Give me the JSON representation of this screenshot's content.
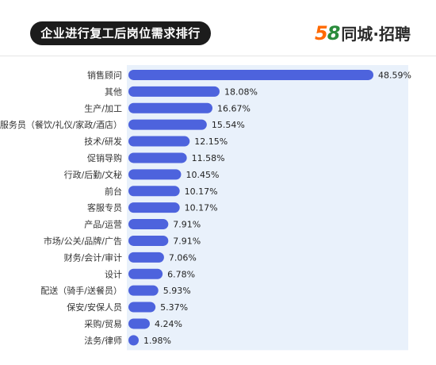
{
  "title": "企业进行复工后岗位需求排行",
  "logo": {
    "number": "58",
    "text": "同城·招聘"
  },
  "colors": {
    "bar": "#4d63dd",
    "panel": "#e9f1fb",
    "title_bg": "#1c1c1c"
  },
  "chart_data": {
    "type": "bar",
    "orientation": "horizontal",
    "categories": [
      "销售顾问",
      "其他",
      "生产/加工",
      "服务员（餐饮/礼仪/家政/酒店）",
      "技术/研发",
      "促销导购",
      "行政/后勤/文秘",
      "前台",
      "客服专员",
      "产品/运营",
      "市场/公关/品牌/广告",
      "财务/会计/审计",
      "设计",
      "配送（骑手/送餐员）",
      "保安/安保人员",
      "采购/贸易",
      "法务/律师"
    ],
    "values": [
      48.59,
      18.08,
      16.67,
      15.54,
      12.15,
      11.58,
      10.45,
      10.17,
      10.17,
      7.91,
      7.91,
      7.06,
      6.78,
      5.93,
      5.37,
      4.24,
      1.98
    ],
    "value_labels": [
      "48.59%",
      "18.08%",
      "16.67%",
      "15.54%",
      "12.15%",
      "11.58%",
      "10.45%",
      "10.17%",
      "10.17%",
      "7.91%",
      "7.91%",
      "7.06%",
      "6.78%",
      "5.93%",
      "5.37%",
      "4.24%",
      "1.98%"
    ],
    "title": "企业进行复工后岗位需求排行",
    "xlabel": "",
    "ylabel": "",
    "xlim": [
      0,
      50
    ],
    "grid": false,
    "legend": "none"
  }
}
